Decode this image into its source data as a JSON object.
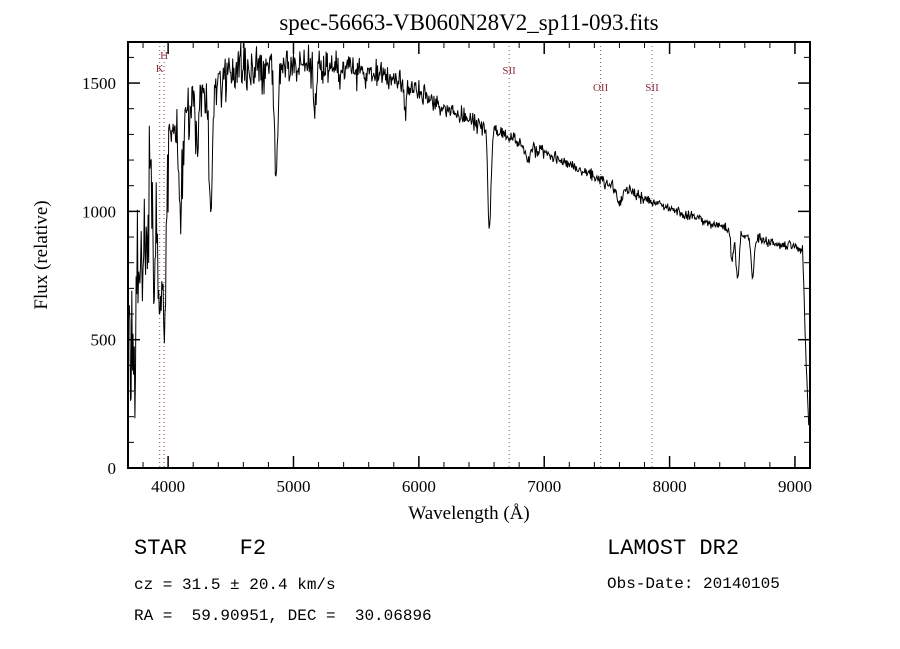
{
  "title": "spec-56663-VB060N28V2_sp11-093.fits",
  "footer": {
    "class_label": "STAR    F2",
    "survey": "LAMOST DR2",
    "cz": "cz = 31.5 ± 20.4 km/s",
    "obs_date": "Obs-Date: 20140105",
    "radec": "RA =  59.90951, DEC =  30.06896"
  },
  "chart_data": {
    "type": "line",
    "title": "spec-56663-VB060N28V2_sp11-093.fits",
    "xlabel": "Wavelength (Å)",
    "ylabel": "Flux (relative)",
    "xlim": [
      3680,
      9120
    ],
    "ylim": [
      0,
      1660
    ],
    "x_major_ticks": [
      4000,
      5000,
      6000,
      7000,
      8000,
      9000
    ],
    "x_minor_step": 200,
    "y_major_ticks": [
      0,
      500,
      1000,
      1500
    ],
    "y_minor_step": 100,
    "grid": false,
    "legend": "none",
    "line_color": "#000000",
    "frame_color": "#000000",
    "marker_line_color": "#9b4a56",
    "spectral_line_markers": [
      {
        "label": "H",
        "wavelength": 3968,
        "label_dy": 17
      },
      {
        "label": "K",
        "wavelength": 3933,
        "label_dy": 30
      },
      {
        "label": "SII",
        "wavelength": 6720,
        "label_dy": 32
      },
      {
        "label": "OII",
        "wavelength": 7450,
        "label_dy": 49
      },
      {
        "label": "SII",
        "wavelength": 7860,
        "label_dy": 49
      }
    ],
    "continuum_points": [
      [
        3690,
        500
      ],
      [
        3720,
        850
      ],
      [
        3760,
        1050
      ],
      [
        3800,
        1120
      ],
      [
        3850,
        1170
      ],
      [
        3900,
        1220
      ],
      [
        3950,
        1250
      ],
      [
        4000,
        1300
      ],
      [
        4050,
        1330
      ],
      [
        4150,
        1380
      ],
      [
        4250,
        1430
      ],
      [
        4400,
        1490
      ],
      [
        4500,
        1530
      ],
      [
        4600,
        1555
      ],
      [
        4750,
        1565
      ],
      [
        4900,
        1565
      ],
      [
        5100,
        1570
      ],
      [
        5300,
        1560
      ],
      [
        5500,
        1550
      ],
      [
        5700,
        1535
      ],
      [
        5850,
        1510
      ],
      [
        6000,
        1460
      ],
      [
        6150,
        1415
      ],
      [
        6300,
        1380
      ],
      [
        6450,
        1345
      ],
      [
        6600,
        1310
      ],
      [
        6800,
        1270
      ],
      [
        7000,
        1230
      ],
      [
        7200,
        1180
      ],
      [
        7400,
        1135
      ],
      [
        7600,
        1090
      ],
      [
        7800,
        1050
      ],
      [
        8000,
        1010
      ],
      [
        8200,
        975
      ],
      [
        8400,
        945
      ],
      [
        8600,
        905
      ],
      [
        8800,
        880
      ],
      [
        9000,
        860
      ],
      [
        9060,
        850
      ],
      [
        9090,
        400
      ],
      [
        9110,
        170
      ]
    ],
    "absorption_lines": [
      {
        "center": 3735,
        "depth": 600,
        "width": 12
      },
      {
        "center": 3770,
        "depth": 350,
        "width": 10
      },
      {
        "center": 3798,
        "depth": 300,
        "width": 10
      },
      {
        "center": 3835,
        "depth": 400,
        "width": 10
      },
      {
        "center": 3889,
        "depth": 450,
        "width": 10
      },
      {
        "center": 3933,
        "depth": 750,
        "width": 14
      },
      {
        "center": 3970,
        "depth": 700,
        "width": 14
      },
      {
        "center": 4102,
        "depth": 430,
        "width": 14
      },
      {
        "center": 4227,
        "depth": 200,
        "width": 8
      },
      {
        "center": 4340,
        "depth": 500,
        "width": 12
      },
      {
        "center": 4861,
        "depth": 440,
        "width": 12
      },
      {
        "center": 5170,
        "depth": 150,
        "width": 10
      },
      {
        "center": 5890,
        "depth": 120,
        "width": 10
      },
      {
        "center": 6563,
        "depth": 390,
        "width": 12
      },
      {
        "center": 6870,
        "depth": 60,
        "width": 15
      },
      {
        "center": 7600,
        "depth": 60,
        "width": 20
      },
      {
        "center": 8498,
        "depth": 120,
        "width": 10
      },
      {
        "center": 8542,
        "depth": 180,
        "width": 12
      },
      {
        "center": 8662,
        "depth": 150,
        "width": 12
      }
    ],
    "noise_profile": [
      [
        3690,
        260
      ],
      [
        3750,
        150
      ],
      [
        3850,
        110
      ],
      [
        3950,
        90
      ],
      [
        4100,
        70
      ],
      [
        4300,
        60
      ],
      [
        4600,
        45
      ],
      [
        5000,
        35
      ],
      [
        5500,
        30
      ],
      [
        6000,
        22
      ],
      [
        6500,
        18
      ],
      [
        7000,
        14
      ],
      [
        7500,
        12
      ],
      [
        8000,
        10
      ],
      [
        8500,
        10
      ],
      [
        9000,
        8
      ]
    ],
    "noise_seed": 42
  }
}
